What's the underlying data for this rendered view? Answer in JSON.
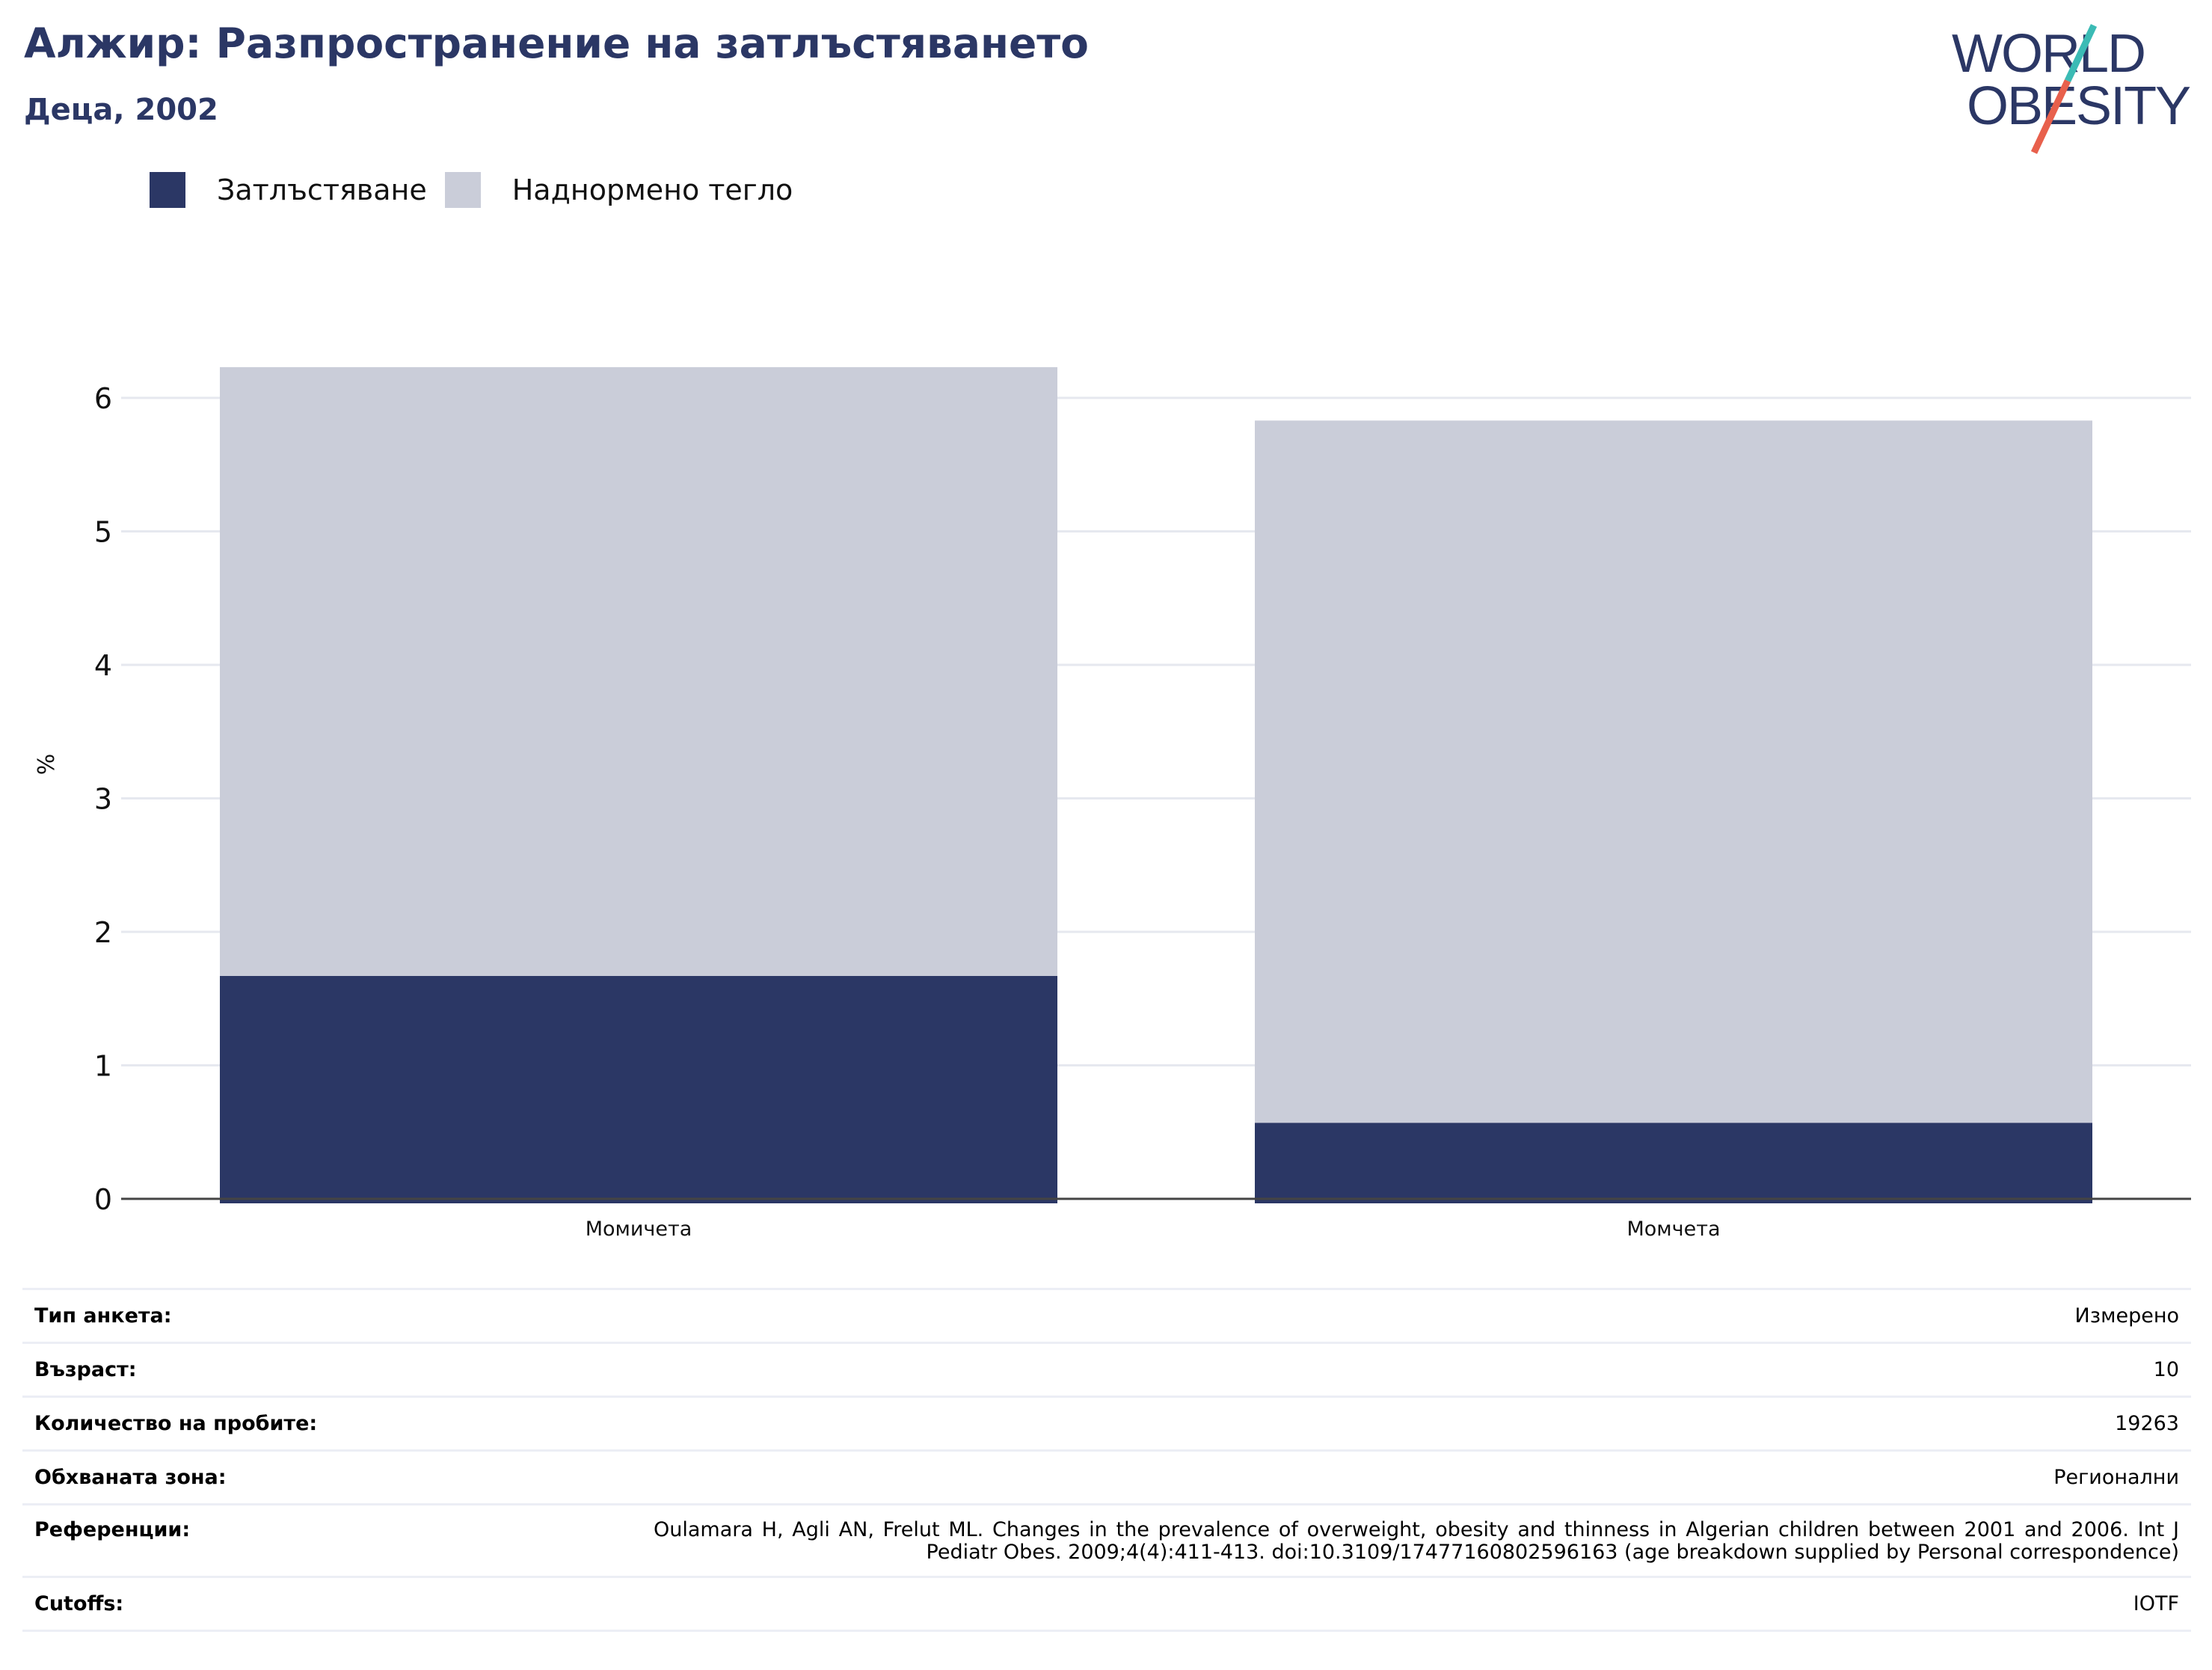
{
  "header": {
    "title": "Алжир: Разпространение на затлъстяването",
    "subtitle": "Деца, 2002"
  },
  "logo": {
    "line1": "WORLD",
    "line2": "OBESITY"
  },
  "colors": {
    "obesity": "#2b3765",
    "overweight": "#cacdd9",
    "title": "#2b3765",
    "logo_teal": "#3bbbb5",
    "logo_red": "#e8604c"
  },
  "legend": [
    {
      "label": "Затлъстяване",
      "color": "#2b3765"
    },
    {
      "label": "Наднормено тегло",
      "color": "#cacdd9"
    }
  ],
  "chart_data": {
    "type": "bar",
    "stacked": true,
    "categories": [
      "Момичета",
      "Момчета"
    ],
    "series": [
      {
        "name": "Затлъстяване",
        "values": [
          1.67,
          0.57
        ]
      },
      {
        "name": "Наднормено тегло",
        "values": [
          4.56,
          5.26
        ]
      }
    ],
    "title": "",
    "xlabel": "",
    "ylabel": "%",
    "ylim": [
      0,
      6.5
    ],
    "yticks": [
      0,
      1,
      2,
      3,
      4,
      5,
      6
    ],
    "grid": true
  },
  "meta": {
    "survey_type_label": "Тип анкета:",
    "survey_type_value": "Измерено",
    "age_label": "Възраст:",
    "age_value": "10",
    "sample_label": "Количество на пробите:",
    "sample_value": "19263",
    "area_label": "Обхваната зона:",
    "area_value": "Регионални",
    "refs_label": "Референции:",
    "refs_value": "Oulamara H, Agli AN, Frelut ML. Changes in the prevalence of overweight, obesity and thinness in Algerian children between 2001 and 2006. Int J Pediatr Obes. 2009;4(4):411-413. doi:10.3109/17477160802596163 (age breakdown supplied by Personal correspondence)",
    "cutoffs_label": "Cutoffs:",
    "cutoffs_value": "IOTF"
  }
}
